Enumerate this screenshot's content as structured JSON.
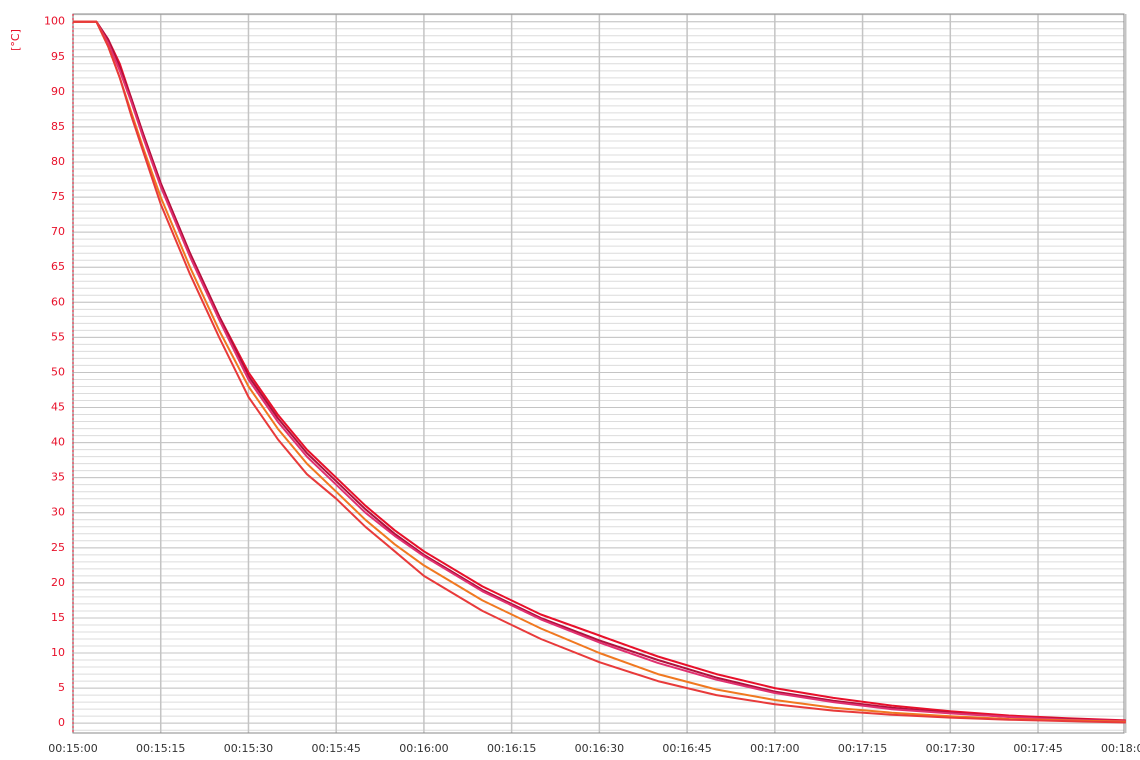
{
  "chart_data": {
    "type": "line",
    "y_label": "[°C]",
    "x": [
      900,
      904,
      906,
      908,
      910,
      912,
      915,
      920,
      925,
      930,
      935,
      940,
      945,
      950,
      955,
      960,
      970,
      980,
      990,
      1000,
      1010,
      1020,
      1030,
      1040,
      1050,
      1060,
      1070,
      1080
    ],
    "series": [
      {
        "color": "#e8102a",
        "values": [
          100,
          100,
          97.5,
          94,
          89,
          84,
          77,
          67,
          58,
          50,
          44,
          39,
          35,
          31,
          27.5,
          24.5,
          19.5,
          15.5,
          12.5,
          9.5,
          7,
          5,
          3.6,
          2.5,
          1.7,
          1.1,
          0.7,
          0.4
        ]
      },
      {
        "color": "#b0103c",
        "values": [
          100,
          100,
          97.5,
          93.5,
          89,
          84,
          77,
          67,
          58,
          49.5,
          43.5,
          38.5,
          34.5,
          30.5,
          27,
          24,
          19,
          15,
          11.8,
          9,
          6.5,
          4.5,
          3.2,
          2.2,
          1.5,
          0.9,
          0.6,
          0.3
        ]
      },
      {
        "color": "#e03070",
        "values": [
          100,
          100,
          97,
          93,
          88.5,
          83.5,
          76.5,
          66.5,
          57.5,
          49,
          43,
          38,
          34,
          30,
          26.7,
          23.8,
          18.8,
          14.8,
          11.5,
          8.6,
          6.2,
          4.3,
          3,
          2,
          1.4,
          0.9,
          0.5,
          0.3
        ]
      },
      {
        "color": "#f07820",
        "values": [
          100,
          100,
          96.5,
          92,
          87,
          82,
          75,
          65,
          56,
          48,
          42,
          37,
          33,
          29,
          25.5,
          22.5,
          17.5,
          13.5,
          10,
          7,
          4.8,
          3.3,
          2.2,
          1.5,
          1,
          0.6,
          0.4,
          0.2
        ]
      },
      {
        "color": "#e83a3a",
        "values": [
          100,
          100,
          96.5,
          92,
          86.5,
          81.5,
          74,
          64,
          55,
          46.5,
          40.5,
          35.5,
          32,
          28,
          24.5,
          21,
          16,
          12,
          8.7,
          6,
          4,
          2.7,
          1.8,
          1.2,
          0.8,
          0.5,
          0.3,
          0.1
        ]
      }
    ],
    "xlim": [
      900,
      1079.7
    ],
    "xticks": [
      {
        "value": 900,
        "label": "00:15:00"
      },
      {
        "value": 915,
        "label": "00:15:15"
      },
      {
        "value": 930,
        "label": "00:15:30"
      },
      {
        "value": 945,
        "label": "00:15:45"
      },
      {
        "value": 960,
        "label": "00:16:00"
      },
      {
        "value": 975,
        "label": "00:16:15"
      },
      {
        "value": 990,
        "label": "00:16:30"
      },
      {
        "value": 1005,
        "label": "00:16:45"
      },
      {
        "value": 1020,
        "label": "00:17:00"
      },
      {
        "value": 1035,
        "label": "00:17:15"
      },
      {
        "value": 1050,
        "label": "00:17:30"
      },
      {
        "value": 1065,
        "label": "00:17:45"
      },
      {
        "value": 1080,
        "label": "00:18:00"
      }
    ],
    "ylim": [
      -1.4,
      101.1
    ],
    "yticks": [
      0,
      5,
      10,
      15,
      20,
      25,
      30,
      35,
      40,
      45,
      50,
      55,
      60,
      65,
      70,
      75,
      80,
      85,
      90,
      95,
      100
    ],
    "grid": true,
    "minor_grid_step": 1,
    "axis_color": "#e8102a"
  }
}
